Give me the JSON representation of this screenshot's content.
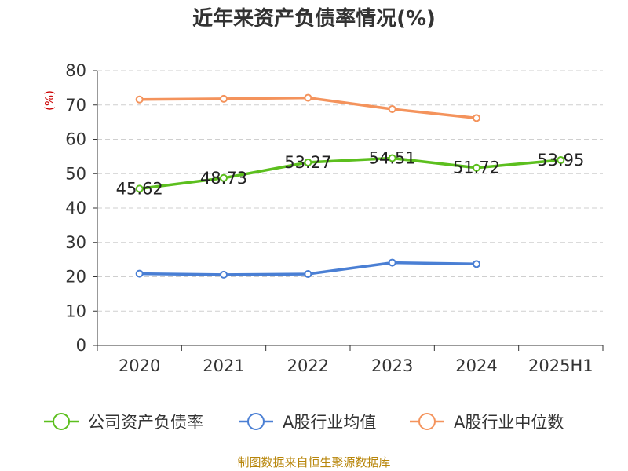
{
  "chart_data": {
    "type": "line",
    "title": "近年来资产负债率情况(%)",
    "ylabel": "(%)",
    "xlabel": "",
    "categories": [
      "2020",
      "2021",
      "2022",
      "2023",
      "2024",
      "2025H1"
    ],
    "ylim": [
      0,
      80
    ],
    "yticks": [
      0,
      10,
      20,
      30,
      40,
      50,
      60,
      70,
      80
    ],
    "grid": true,
    "legend_position": "bottom",
    "series": [
      {
        "name": "公司资产负债率",
        "color": "#5cbf1e",
        "values": [
          45.62,
          48.73,
          53.27,
          54.51,
          51.72,
          53.95
        ],
        "labels": [
          "45.62",
          "48.73",
          "53.27",
          "54.51",
          "51.72",
          "53.95"
        ]
      },
      {
        "name": "A股行业均值",
        "color": "#4a7fd4",
        "values": [
          20.9,
          20.6,
          20.8,
          24.1,
          23.7,
          null
        ]
      },
      {
        "name": "A股行业中位数",
        "color": "#f4935c",
        "values": [
          71.6,
          71.8,
          72.1,
          68.8,
          66.2,
          null
        ]
      }
    ]
  },
  "footer": {
    "source": "制图数据来自恒生聚源数据库"
  }
}
